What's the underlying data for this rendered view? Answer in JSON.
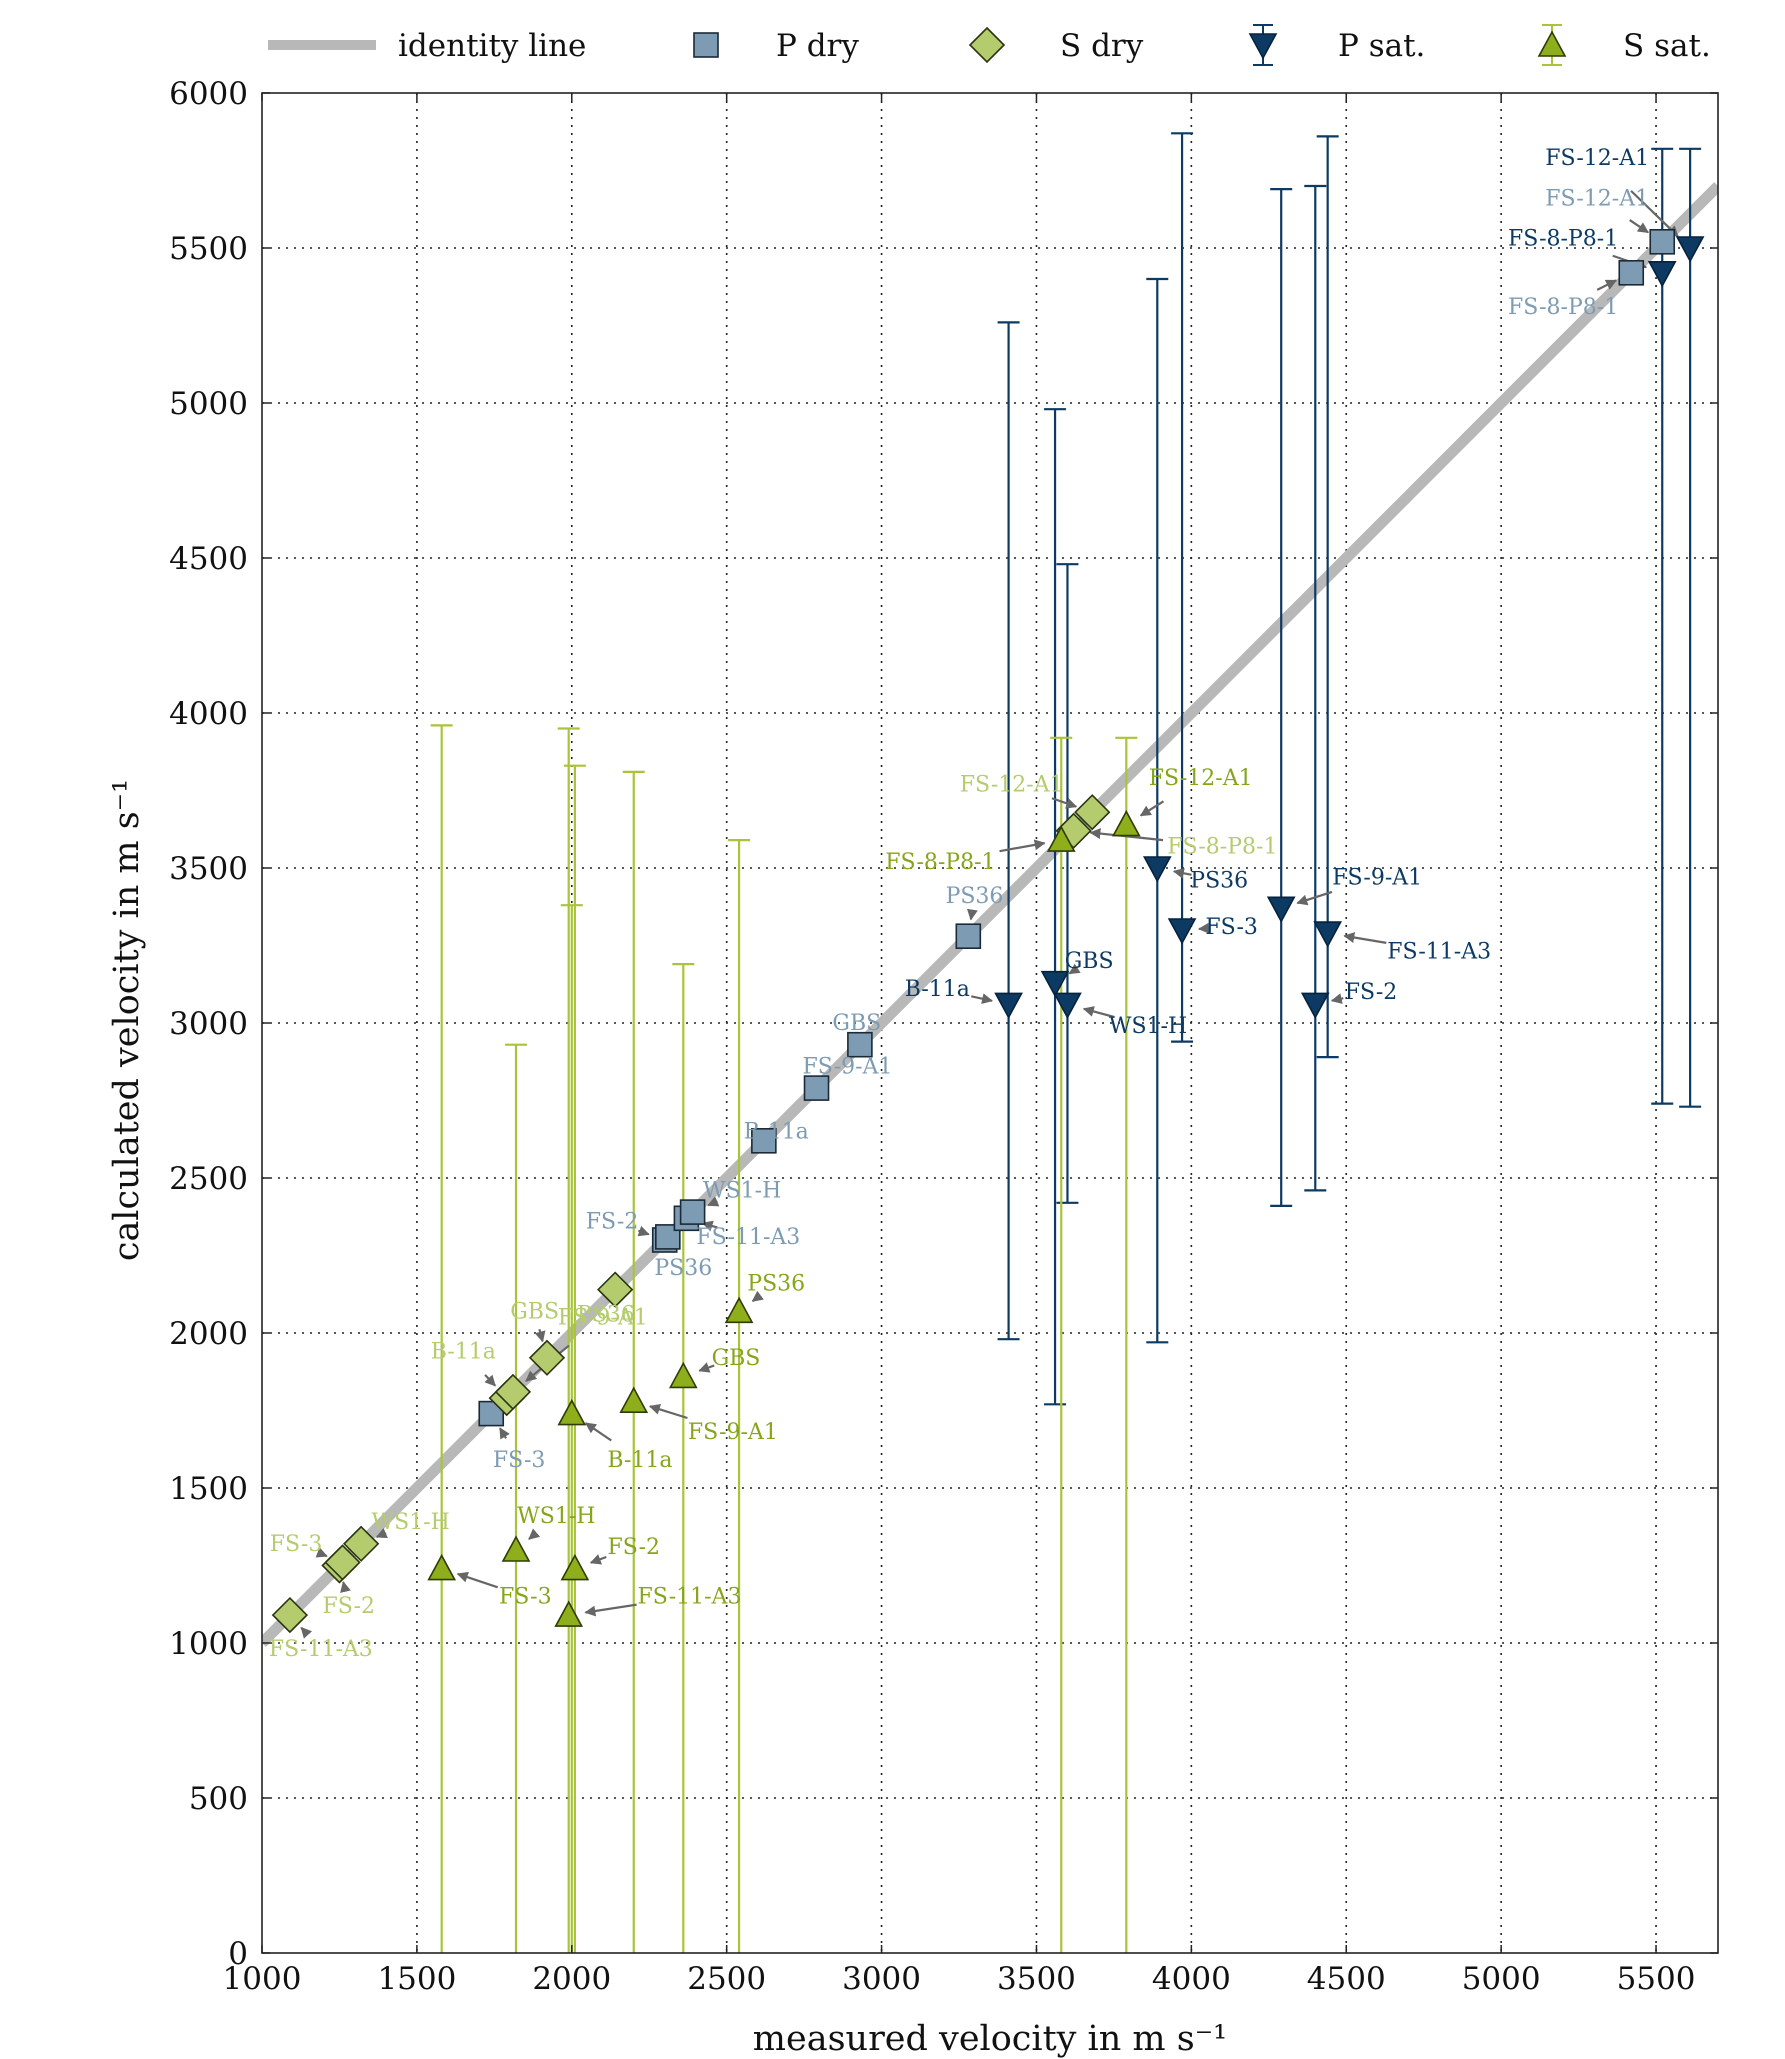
{
  "chart_data": {
    "type": "scatter",
    "xlabel": "measured velocity in m s⁻¹",
    "ylabel": "calculated velocity in m s⁻¹",
    "xlim": [
      1000,
      5700
    ],
    "ylim": [
      0,
      6000
    ],
    "x_ticks": [
      1000,
      1500,
      2000,
      2500,
      3000,
      3500,
      4000,
      4500,
      5000,
      5500
    ],
    "y_ticks": [
      0,
      500,
      1000,
      1500,
      2000,
      2500,
      3000,
      3500,
      4000,
      4500,
      5000,
      5500,
      6000
    ],
    "grid": "dotted",
    "legend_position": "top",
    "colors": {
      "identity": "#b8b8b8",
      "p_dry": "#7d9bb3",
      "s_dry": "#b5cc6e",
      "p_sat": "#0d3a63",
      "s_sat": "#8fae1b",
      "s_sat_bar": "#a9c43a",
      "p_dry_label": "#7d9bb3",
      "s_dry_label": "#b5cc6e",
      "p_sat_label": "#0d3a63",
      "s_sat_label": "#86a51b",
      "arrow": "#666666"
    },
    "legend": [
      {
        "key": "identity",
        "label": "identity line"
      },
      {
        "key": "p_dry",
        "label": "P dry"
      },
      {
        "key": "s_dry",
        "label": "S dry"
      },
      {
        "key": "p_sat",
        "label": "P sat."
      },
      {
        "key": "s_sat",
        "label": "S sat."
      }
    ],
    "identity_line": [
      [
        1000,
        1000
      ],
      [
        5700,
        5700
      ]
    ],
    "series": [
      {
        "key": "p_dry",
        "name": "P dry",
        "marker": "square",
        "points": [
          {
            "label": "FS-3",
            "x": 1740,
            "y": 1740,
            "lx": 1830,
            "ly": 1590
          },
          {
            "label": "FS-2",
            "x": 2300,
            "y": 2300,
            "lx": 2130,
            "ly": 2360
          },
          {
            "label": "PS36",
            "x": 2310,
            "y": 2310,
            "lx": 2360,
            "ly": 2210
          },
          {
            "label": "FS-11-A3",
            "x": 2370,
            "y": 2370,
            "lx": 2570,
            "ly": 2310
          },
          {
            "label": "WS1-H",
            "x": 2390,
            "y": 2390,
            "lx": 2550,
            "ly": 2460
          },
          {
            "label": "B-11a",
            "x": 2620,
            "y": 2620,
            "lx": 2660,
            "ly": 2650
          },
          {
            "label": "FS-9-A1",
            "x": 2790,
            "y": 2790,
            "lx": 2890,
            "ly": 2860
          },
          {
            "label": "GBS",
            "x": 2930,
            "y": 2930,
            "lx": 2920,
            "ly": 3000
          },
          {
            "label": "PS36",
            "x": 3280,
            "y": 3280,
            "lx": 3300,
            "ly": 3410
          },
          {
            "label": "FS-8-P8-1",
            "x": 5420,
            "y": 5420,
            "lx": 5200,
            "ly": 5310
          },
          {
            "label": "FS-12-A1",
            "x": 5520,
            "y": 5520,
            "lx": 5310,
            "ly": 5660
          }
        ]
      },
      {
        "key": "s_dry",
        "name": "S dry",
        "marker": "diamond",
        "points": [
          {
            "label": "FS-11-A3",
            "x": 1090,
            "y": 1090,
            "lx": 1190,
            "ly": 980
          },
          {
            "label": "FS-2",
            "x": 1250,
            "y": 1250,
            "lx": 1280,
            "ly": 1120
          },
          {
            "label": "FS-3",
            "x": 1260,
            "y": 1260,
            "lx": 1110,
            "ly": 1320
          },
          {
            "label": "WS1-H",
            "x": 1320,
            "y": 1320,
            "lx": 1480,
            "ly": 1390
          },
          {
            "label": "B-11a",
            "x": 1790,
            "y": 1790,
            "lx": 1650,
            "ly": 1940
          },
          {
            "label": "FS-9-A1",
            "x": 1810,
            "y": 1810,
            "lx": 2100,
            "ly": 2050
          },
          {
            "label": "GBS",
            "x": 1920,
            "y": 1920,
            "lx": 1880,
            "ly": 2070
          },
          {
            "label": "PS36",
            "x": 2140,
            "y": 2140,
            "lx": 2110,
            "ly": 2060
          },
          {
            "label": "FS-8-P8-1",
            "x": 3620,
            "y": 3620,
            "lx": 4100,
            "ly": 3570
          },
          {
            "label": "FS-12-A1",
            "x": 3680,
            "y": 3680,
            "lx": 3420,
            "ly": 3770
          }
        ]
      },
      {
        "key": "p_sat",
        "name": "P sat.",
        "marker": "triangle-down",
        "points": [
          {
            "label": "B-11a",
            "x": 3410,
            "y": 3060,
            "yerr": [
              1980,
              5260
            ],
            "lx": 3180,
            "ly": 3110
          },
          {
            "label": "GBS",
            "x": 3560,
            "y": 3130,
            "yerr": [
              1770,
              4980
            ],
            "lx": 3670,
            "ly": 3200
          },
          {
            "label": "WS1-H",
            "x": 3600,
            "y": 3060,
            "yerr": [
              2420,
              4480
            ],
            "lx": 3860,
            "ly": 2990
          },
          {
            "label": "PS36",
            "x": 3890,
            "y": 3500,
            "yerr": [
              1970,
              5400
            ],
            "lx": 4090,
            "ly": 3460
          },
          {
            "label": "FS-3",
            "x": 3970,
            "y": 3300,
            "yerr": [
              2940,
              5870
            ],
            "lx": 4130,
            "ly": 3310
          },
          {
            "label": "FS-9-A1",
            "x": 4290,
            "y": 3370,
            "yerr": [
              2410,
              5690
            ],
            "lx": 4600,
            "ly": 3470
          },
          {
            "label": "FS-2",
            "x": 4400,
            "y": 3060,
            "yerr": [
              2460,
              5700
            ],
            "lx": 4580,
            "ly": 3100
          },
          {
            "label": "FS-11-A3",
            "x": 4440,
            "y": 3290,
            "yerr": [
              2890,
              5860
            ],
            "lx": 4800,
            "ly": 3230
          },
          {
            "label": "FS-8-P8-1",
            "x": 5520,
            "y": 5420,
            "yerr": [
              2740,
              5820
            ],
            "lx": 5200,
            "ly": 5530
          },
          {
            "label": "FS-12-A1",
            "x": 5610,
            "y": 5500,
            "yerr": [
              2730,
              5820
            ],
            "lx": 5310,
            "ly": 5790
          }
        ]
      },
      {
        "key": "s_sat",
        "name": "S sat.",
        "marker": "triangle-up",
        "points": [
          {
            "label": "FS-3",
            "x": 1580,
            "y": 1240,
            "yerr": [
              0,
              3960
            ],
            "lx": 1850,
            "ly": 1150
          },
          {
            "label": "WS1-H",
            "x": 1820,
            "y": 1300,
            "yerr": [
              0,
              2930
            ],
            "lx": 1950,
            "ly": 1410
          },
          {
            "label": "FS-11-A3",
            "x": 1990,
            "y": 1090,
            "yerr": [
              0,
              3950
            ],
            "lx": 2380,
            "ly": 1150
          },
          {
            "label": "B-11a",
            "x": 2000,
            "y": 1740,
            "yerr": [
              0,
              3380
            ],
            "lx": 2220,
            "ly": 1590
          },
          {
            "label": "FS-2",
            "x": 2010,
            "y": 1240,
            "yerr": [
              0,
              3830
            ],
            "lx": 2200,
            "ly": 1310
          },
          {
            "label": "FS-9-A1",
            "x": 2200,
            "y": 1780,
            "yerr": [
              0,
              3810
            ],
            "lx": 2520,
            "ly": 1680
          },
          {
            "label": "GBS",
            "x": 2360,
            "y": 1860,
            "yerr": [
              0,
              3190
            ],
            "lx": 2530,
            "ly": 1920
          },
          {
            "label": "PS36",
            "x": 2540,
            "y": 2070,
            "yerr": [
              0,
              3590
            ],
            "lx": 2660,
            "ly": 2160
          },
          {
            "label": "FS-8-P8-1",
            "x": 3580,
            "y": 3590,
            "yerr": [
              0,
              3920
            ],
            "lx": 3190,
            "ly": 3520
          },
          {
            "label": "FS-12-A1",
            "x": 3790,
            "y": 3640,
            "yerr": [
              0,
              3920
            ],
            "lx": 4030,
            "ly": 3790
          }
        ]
      }
    ]
  }
}
